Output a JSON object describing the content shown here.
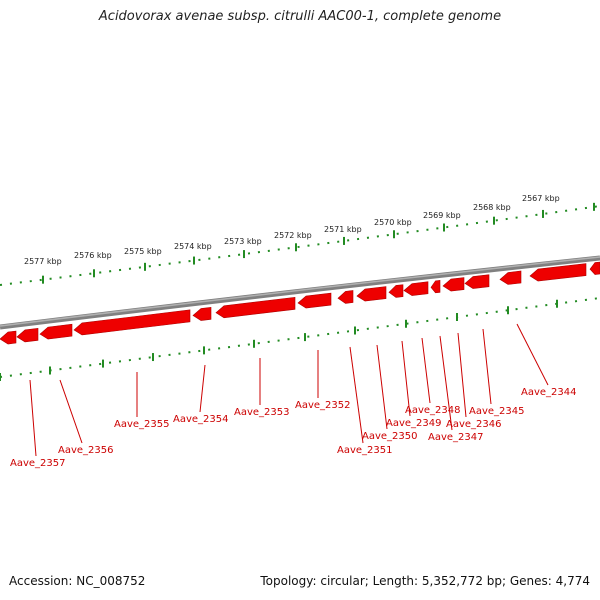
{
  "title": "Acidovorax avenae subsp. citrulli AAC00-1, complete genome",
  "footer": {
    "accession": "Accession: NC_008752",
    "summary": "Topology: circular; Length: 5,352,772 bp; Genes: 4,774"
  },
  "colors": {
    "gene_fill": "#ee0000",
    "tick": "#228b22",
    "backbone": "#808080",
    "label_text": "#cc0000"
  },
  "scale_labels": [
    "2577 kbp",
    "2576 kbp",
    "2575 kbp",
    "2574 kbp",
    "2573 kbp",
    "2572 kbp",
    "2571 kbp",
    "2570 kbp",
    "2569 kbp",
    "2568 kbp",
    "2567 kbp"
  ],
  "genes": [
    "Aave_2357",
    "Aave_2356",
    "Aave_2355",
    "Aave_2354",
    "Aave_2353",
    "Aave_2352",
    "Aave_2351",
    "Aave_2350",
    "Aave_2349",
    "Aave_2348",
    "Aave_2347",
    "Aave_2346",
    "Aave_2345",
    "Aave_2344"
  ]
}
